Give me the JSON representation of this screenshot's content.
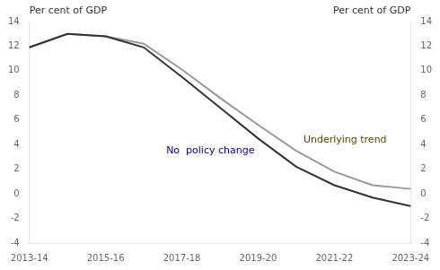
{
  "chart_data": {
    "type": "line",
    "ylabel": "Per cent of GDP",
    "y2label": "Per cent of GDP",
    "categories": [
      "2013-14",
      null,
      "2015-16",
      null,
      "2017-18",
      null,
      "2019-20",
      null,
      "2021-22",
      null,
      "2023-24"
    ],
    "series": [
      {
        "name": "No  policy change",
        "color": "#333333",
        "values": [
          11.9,
          13.0,
          12.8,
          11.9,
          9.5,
          7.0,
          4.5,
          2.2,
          0.7,
          -0.3,
          -1.0
        ]
      },
      {
        "name": "Underlying trend",
        "color": "#999999",
        "values": [
          11.9,
          13.0,
          12.8,
          12.2,
          10.1,
          7.8,
          5.6,
          3.5,
          1.8,
          0.7,
          0.4
        ]
      }
    ],
    "annotations": [
      {
        "text": "No  policy change",
        "color": "#00008b"
      },
      {
        "text": "Underlying trend",
        "color": "#4d4d00"
      }
    ],
    "ylim": [
      -4,
      14
    ],
    "yticks": [
      -4,
      -2,
      0,
      2,
      4,
      6,
      8,
      10,
      12,
      14
    ],
    "y2lim": [
      -4,
      14
    ],
    "y2ticks": [
      -4,
      -2,
      0,
      2,
      4,
      6,
      8,
      10,
      12,
      14
    ],
    "grid": false
  }
}
